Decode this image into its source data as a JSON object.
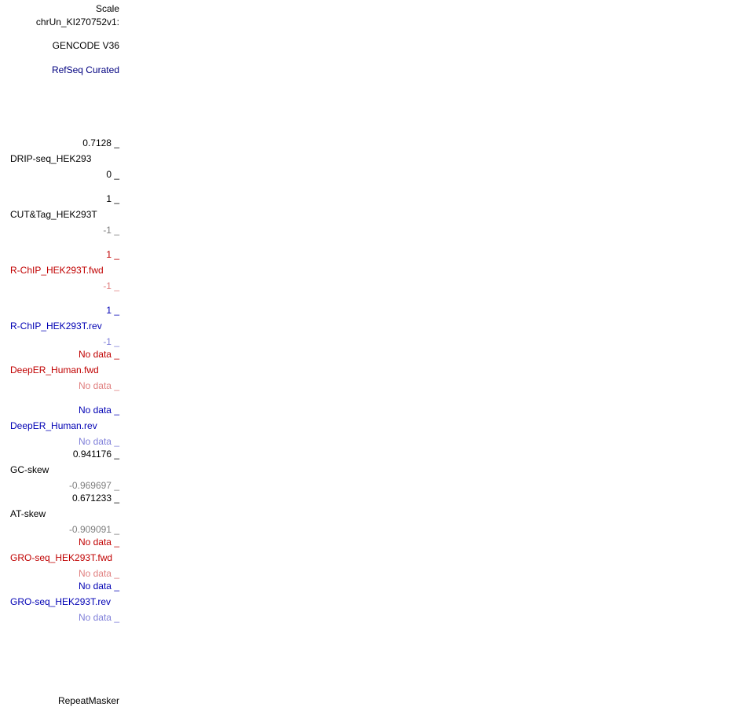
{
  "header": {
    "scale_label": "Scale",
    "chrom_label": "chrUn_KI270752v1:",
    "gencode_label": "GENCODE V36",
    "refseq_label": "RefSeq Curated"
  },
  "tracks": {
    "drip": {
      "max": "0.7128 _",
      "name": "DRIP-seq_HEK293",
      "min": "0 _"
    },
    "cuttag": {
      "max": "1 _",
      "name": "CUT&Tag_HEK293T",
      "min": "-1 _"
    },
    "rchip_fwd": {
      "max": "1 _",
      "name": "R-ChIP_HEK293T.fwd",
      "min": "-1 _"
    },
    "rchip_rev": {
      "max": "1 _",
      "name": "R-ChIP_HEK293T.rev",
      "min": "-1 _"
    },
    "deeper_fwd": {
      "max": "No data _",
      "name": "DeepER_Human.fwd",
      "min": "No data _"
    },
    "deeper_rev": {
      "max": "No data _",
      "name": "DeepER_Human.rev",
      "min": "No data _"
    },
    "gc_skew": {
      "max": "0.941176 _",
      "name": "GC-skew",
      "min": "-0.969697 _"
    },
    "at_skew": {
      "max": "0.671233 _",
      "name": "AT-skew",
      "min": "-0.909091 _"
    },
    "gro_fwd": {
      "max": "No data _",
      "name": "GRO-seq_HEK293T.fwd",
      "min": "No data _"
    },
    "gro_rev": {
      "max": "No data _",
      "name": "GRO-seq_HEK293T.rev",
      "min": "No data _"
    }
  },
  "footer": {
    "repeatmasker_label": "RepeatMasker"
  },
  "colors": {
    "black": "#000000",
    "gray": "#7f7f7f",
    "red": "#c00000",
    "pink": "#e07f7f",
    "blue": "#0000b4",
    "light_blue": "#7f7fd9",
    "navy": "#000080"
  }
}
